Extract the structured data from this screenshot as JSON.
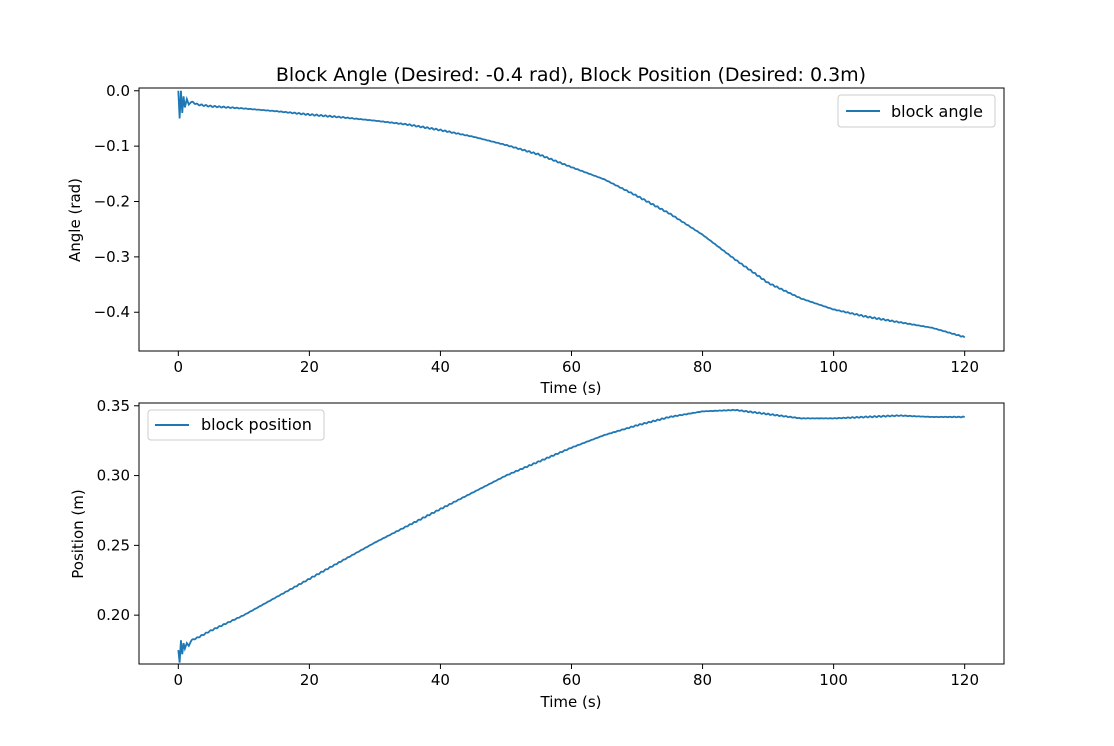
{
  "figure": {
    "title": "Block Angle (Desired: -0.4 rad), Block Position (Desired: 0.3m)"
  },
  "colors": {
    "line": "#1f77b4",
    "axes": "#000000",
    "legend_border": "#cccccc",
    "background": "#ffffff"
  },
  "chart_data": [
    {
      "type": "line",
      "title": "Block Angle (Desired: -0.4 rad), Block Position (Desired: 0.3m)",
      "xlabel": "Time (s)",
      "ylabel": "Angle (rad)",
      "xlim": [
        -6,
        126
      ],
      "ylim": [
        -0.47,
        0.005
      ],
      "xticks": [
        0,
        20,
        40,
        60,
        80,
        100,
        120
      ],
      "xtick_labels": [
        "0",
        "20",
        "40",
        "60",
        "80",
        "100",
        "120"
      ],
      "yticks": [
        0.0,
        -0.1,
        -0.2,
        -0.3,
        -0.4
      ],
      "ytick_labels": [
        "0.0",
        "−0.1",
        "−0.2",
        "−0.3",
        "−0.4"
      ],
      "grid": false,
      "legend_position": "top-right",
      "series": [
        {
          "name": "block angle",
          "x": [
            0,
            0.2,
            0.4,
            0.6,
            0.8,
            1.0,
            1.3,
            1.6,
            2,
            3,
            5,
            10,
            15,
            20,
            25,
            30,
            35,
            40,
            45,
            50,
            55,
            60,
            65,
            70,
            75,
            80,
            85,
            90,
            95,
            100,
            105,
            110,
            115,
            120
          ],
          "y": [
            0.0,
            -0.05,
            0.0,
            -0.04,
            -0.01,
            -0.03,
            -0.015,
            -0.025,
            -0.02,
            -0.025,
            -0.028,
            -0.032,
            -0.037,
            -0.043,
            -0.048,
            -0.054,
            -0.061,
            -0.071,
            -0.083,
            -0.098,
            -0.115,
            -0.138,
            -0.16,
            -0.19,
            -0.222,
            -0.26,
            -0.305,
            -0.347,
            -0.375,
            -0.395,
            -0.408,
            -0.418,
            -0.428,
            -0.445
          ]
        }
      ]
    },
    {
      "type": "line",
      "xlabel": "Time (s)",
      "ylabel": "Position (m)",
      "xlim": [
        -6,
        126
      ],
      "ylim": [
        0.165,
        0.352
      ],
      "xticks": [
        0,
        20,
        40,
        60,
        80,
        100,
        120
      ],
      "xtick_labels": [
        "0",
        "20",
        "40",
        "60",
        "80",
        "100",
        "120"
      ],
      "yticks": [
        0.2,
        0.25,
        0.3,
        0.35
      ],
      "ytick_labels": [
        "0.20",
        "0.25",
        "0.30",
        "0.35"
      ],
      "grid": false,
      "legend_position": "top-left",
      "series": [
        {
          "name": "block position",
          "x": [
            0,
            0.2,
            0.4,
            0.6,
            0.8,
            1.0,
            1.3,
            1.6,
            2,
            3,
            5,
            10,
            15,
            20,
            25,
            30,
            35,
            40,
            45,
            50,
            55,
            60,
            65,
            70,
            75,
            80,
            85,
            90,
            95,
            100,
            105,
            110,
            115,
            120
          ],
          "y": [
            0.175,
            0.166,
            0.182,
            0.172,
            0.18,
            0.176,
            0.18,
            0.178,
            0.182,
            0.184,
            0.189,
            0.2,
            0.213,
            0.226,
            0.239,
            0.252,
            0.264,
            0.276,
            0.288,
            0.3,
            0.31,
            0.32,
            0.329,
            0.336,
            0.342,
            0.346,
            0.347,
            0.344,
            0.341,
            0.341,
            0.342,
            0.343,
            0.342,
            0.342
          ]
        }
      ]
    }
  ]
}
